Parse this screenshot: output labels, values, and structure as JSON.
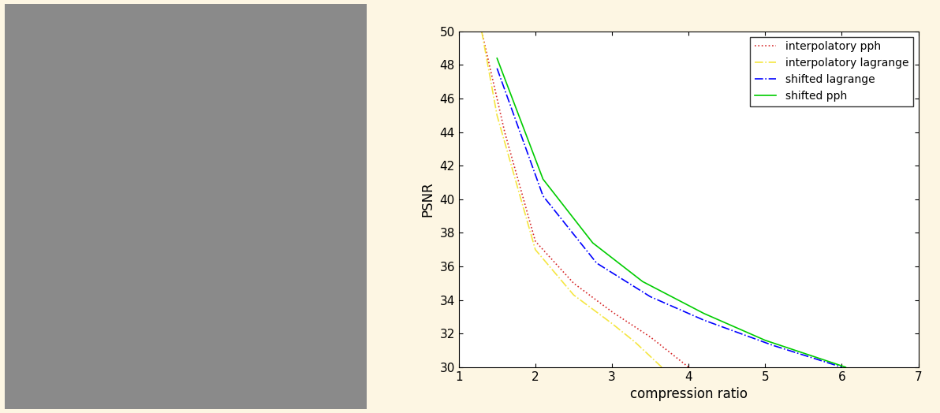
{
  "chart_data": {
    "type": "line",
    "x_label": "compression ratio",
    "y_label": "PSNR",
    "xlim": [
      1,
      7
    ],
    "xticks": [
      1,
      2,
      3,
      4,
      5,
      6,
      7
    ],
    "ylim": [
      30,
      50
    ],
    "yticks": [
      30,
      32,
      34,
      36,
      38,
      40,
      42,
      44,
      46,
      48,
      50
    ],
    "legend": "upper right",
    "series": [
      {
        "name": "interpolatory pph",
        "color": "#d62728",
        "line_style": "dotted",
        "x": [
          1.3,
          1.6,
          2.0,
          2.5,
          3.0,
          3.5,
          4.0
        ],
        "values": [
          50,
          44,
          37.5,
          35,
          33.3,
          31.8,
          30
        ]
      },
      {
        "name": "interpolatory lagrange",
        "color": "#f5e642",
        "line_style": "dashdot",
        "x": [
          1.3,
          1.5,
          2.0,
          2.5,
          3.0,
          3.3,
          3.65
        ],
        "values": [
          50,
          45,
          37,
          34.3,
          32.6,
          31.5,
          30
        ]
      },
      {
        "name": "shifted lagrange",
        "color": "#0000ff",
        "line_style": "dashdot",
        "x": [
          1.5,
          2.1,
          2.8,
          3.5,
          4.2,
          5.1,
          6.0
        ],
        "values": [
          47.8,
          40.2,
          36.2,
          34.2,
          32.8,
          31.3,
          30
        ]
      },
      {
        "name": "shifted pph",
        "color": "#00cc00",
        "line_style": "solid",
        "x": [
          1.5,
          2.1,
          2.75,
          3.4,
          4.2,
          5.0,
          6.05
        ],
        "values": [
          48.4,
          41.2,
          37.4,
          35.1,
          33.2,
          31.6,
          30
        ]
      }
    ]
  }
}
